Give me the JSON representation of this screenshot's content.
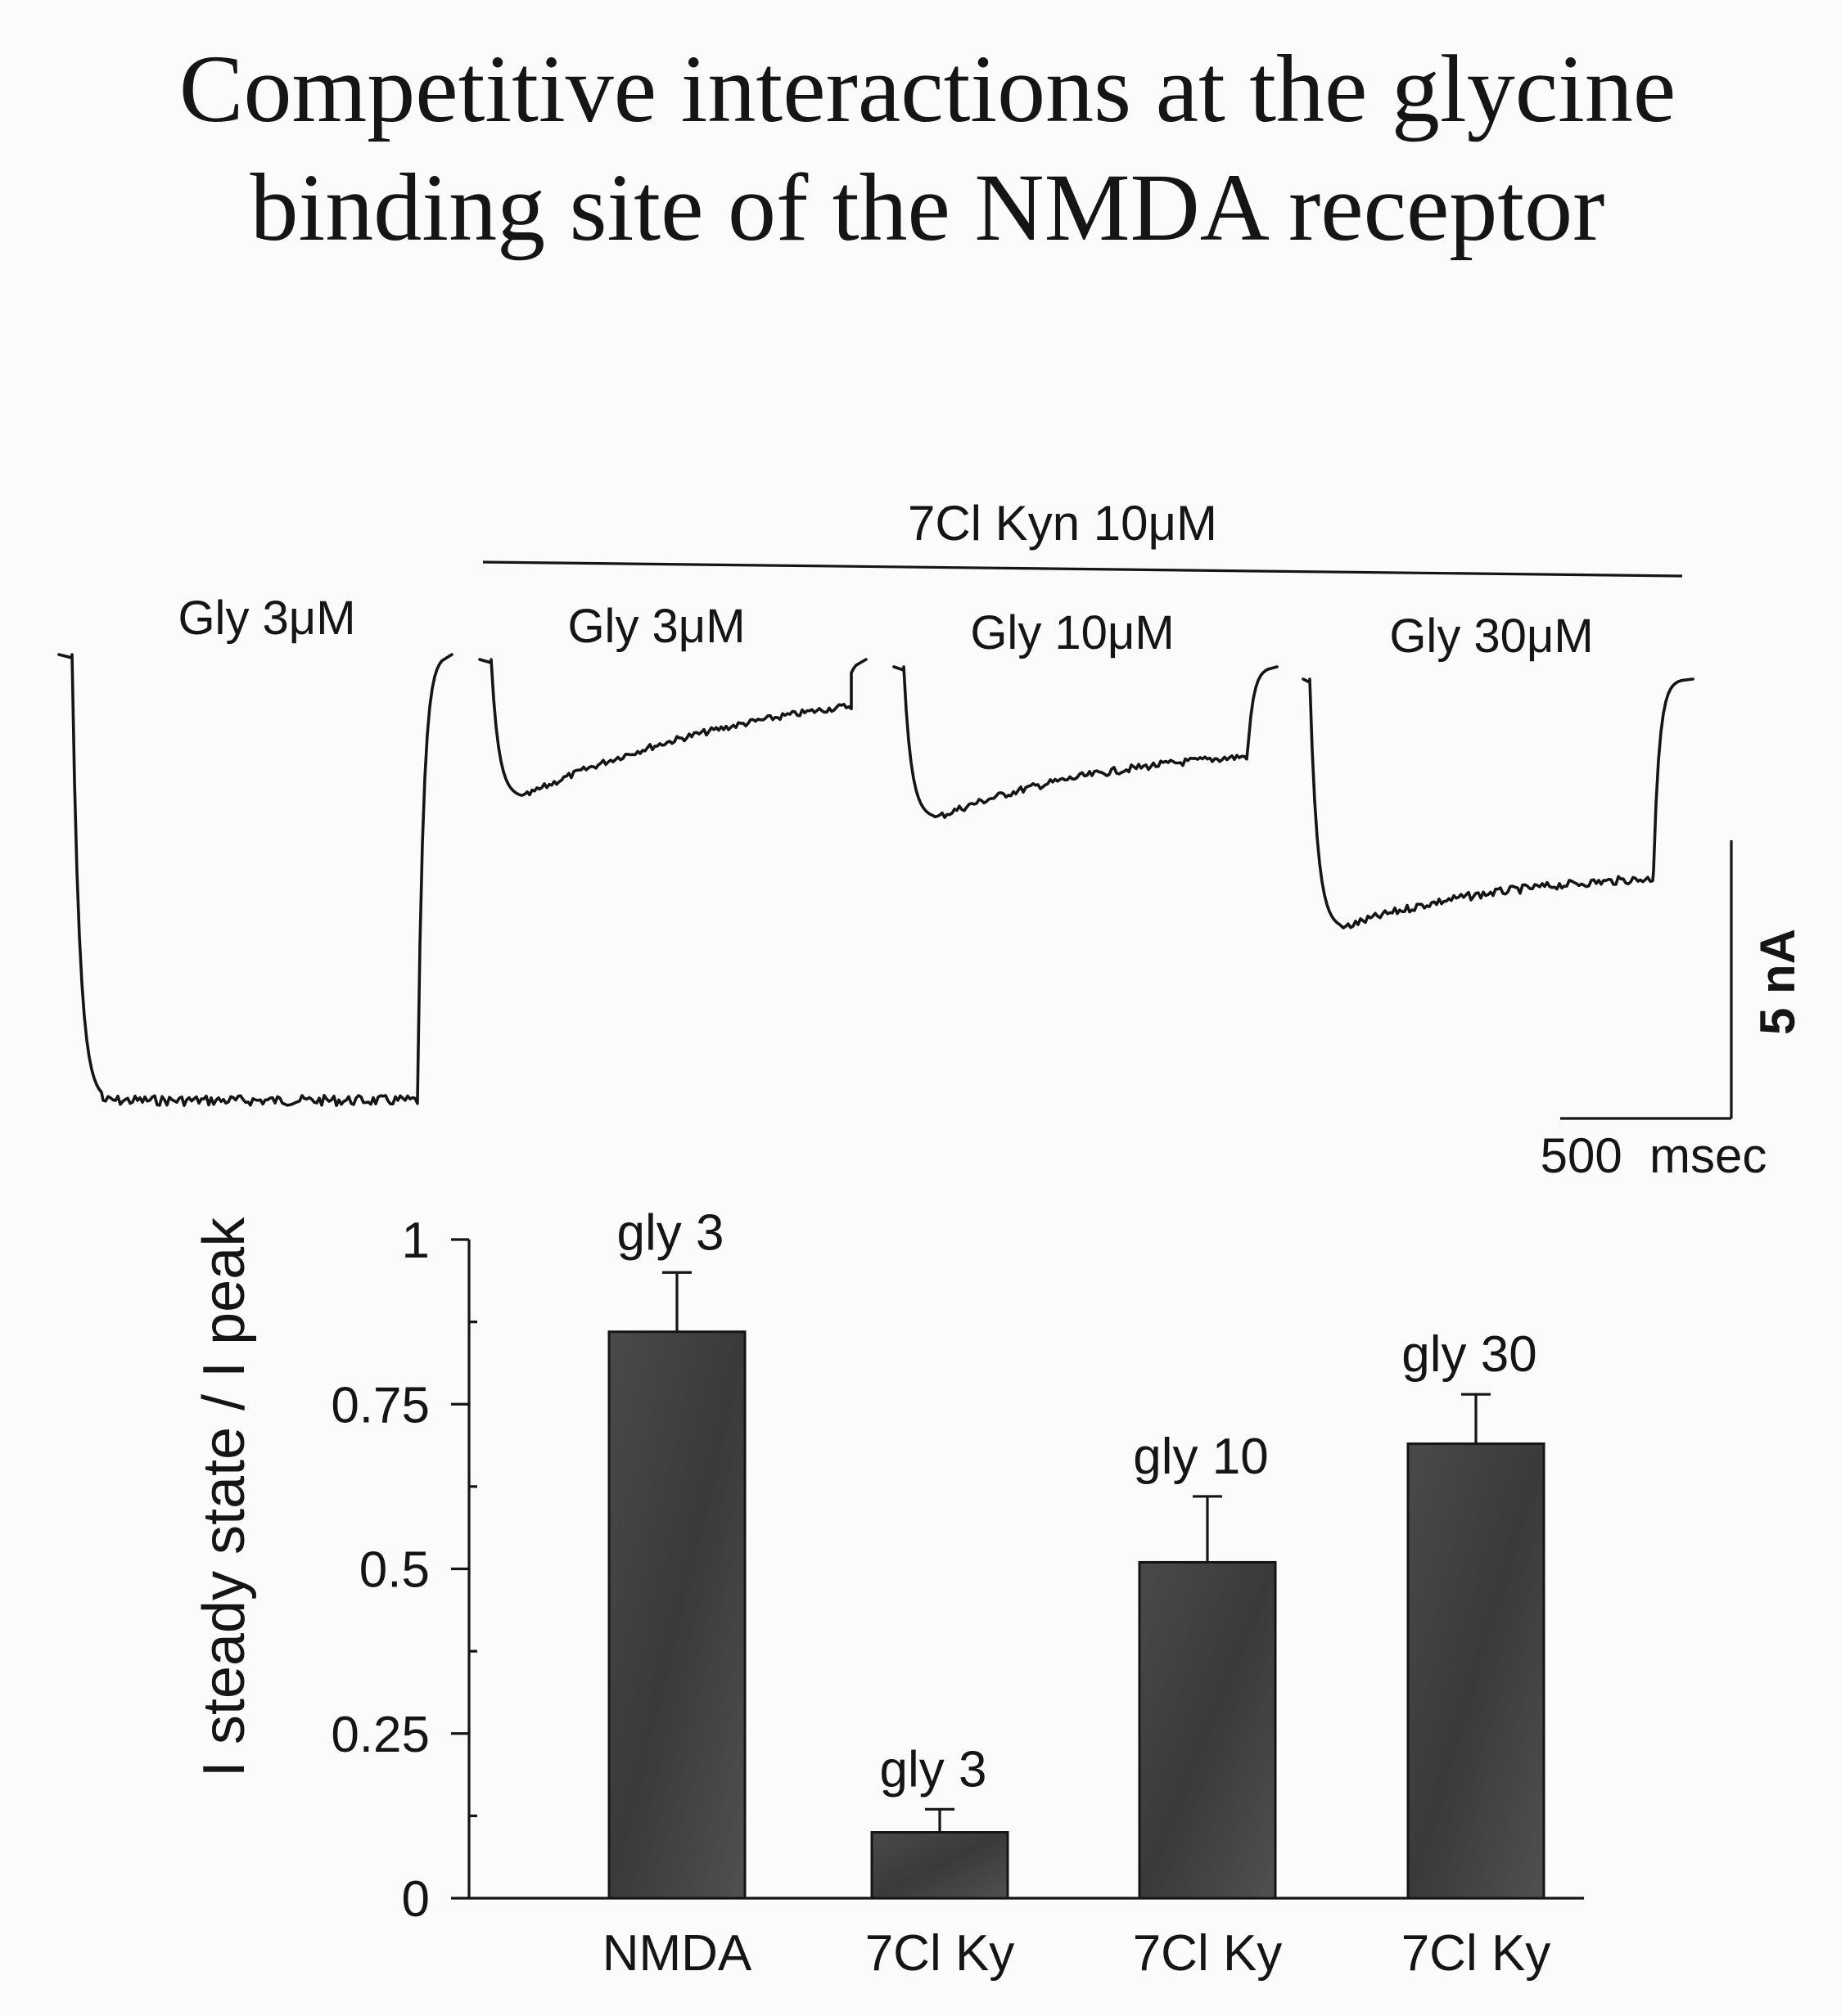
{
  "title_line1": "Competitive interactions at the glycine",
  "title_line2": "binding site of the NMDA receptor",
  "traces_panel": {
    "condition_label": "7Cl Kyn 10μM",
    "traces": [
      {
        "label": "Gly 3μM",
        "peak": 1.0,
        "steady": 1.0,
        "tau": 0.05,
        "noise": 1.4
      },
      {
        "label": "Gly 3μM",
        "peak": 0.31,
        "steady": 0.03,
        "tau": 0.9,
        "noise": 0.9
      },
      {
        "label": "Gly 10μM",
        "peak": 0.34,
        "steady": 0.17,
        "tau": 0.7,
        "noise": 1.0
      },
      {
        "label": "Gly 30μM",
        "peak": 0.56,
        "steady": 0.43,
        "tau": 0.6,
        "noise": 1.1
      }
    ],
    "scale_bar": {
      "current_label": "5 nA",
      "time_label": "500  msec"
    }
  },
  "chart_data": {
    "type": "bar",
    "categories": [
      "NMDA",
      "7Cl  Ky",
      "7Cl  Ky",
      "7Cl  Ky"
    ],
    "values": [
      0.86,
      0.1,
      0.51,
      0.69
    ],
    "errors": [
      0.09,
      0.035,
      0.1,
      0.075
    ],
    "annotations": [
      "gly  3",
      "gly  3",
      "gly  10",
      "gly  30"
    ],
    "ylabel": "I steady state / I peak",
    "ylim": [
      0,
      1
    ],
    "yticks": [
      0,
      0.25,
      0.5,
      0.75,
      1
    ],
    "ytick_labels": [
      "0",
      "0.25",
      "0.5",
      "0.75",
      "1"
    ],
    "grid": false
  }
}
